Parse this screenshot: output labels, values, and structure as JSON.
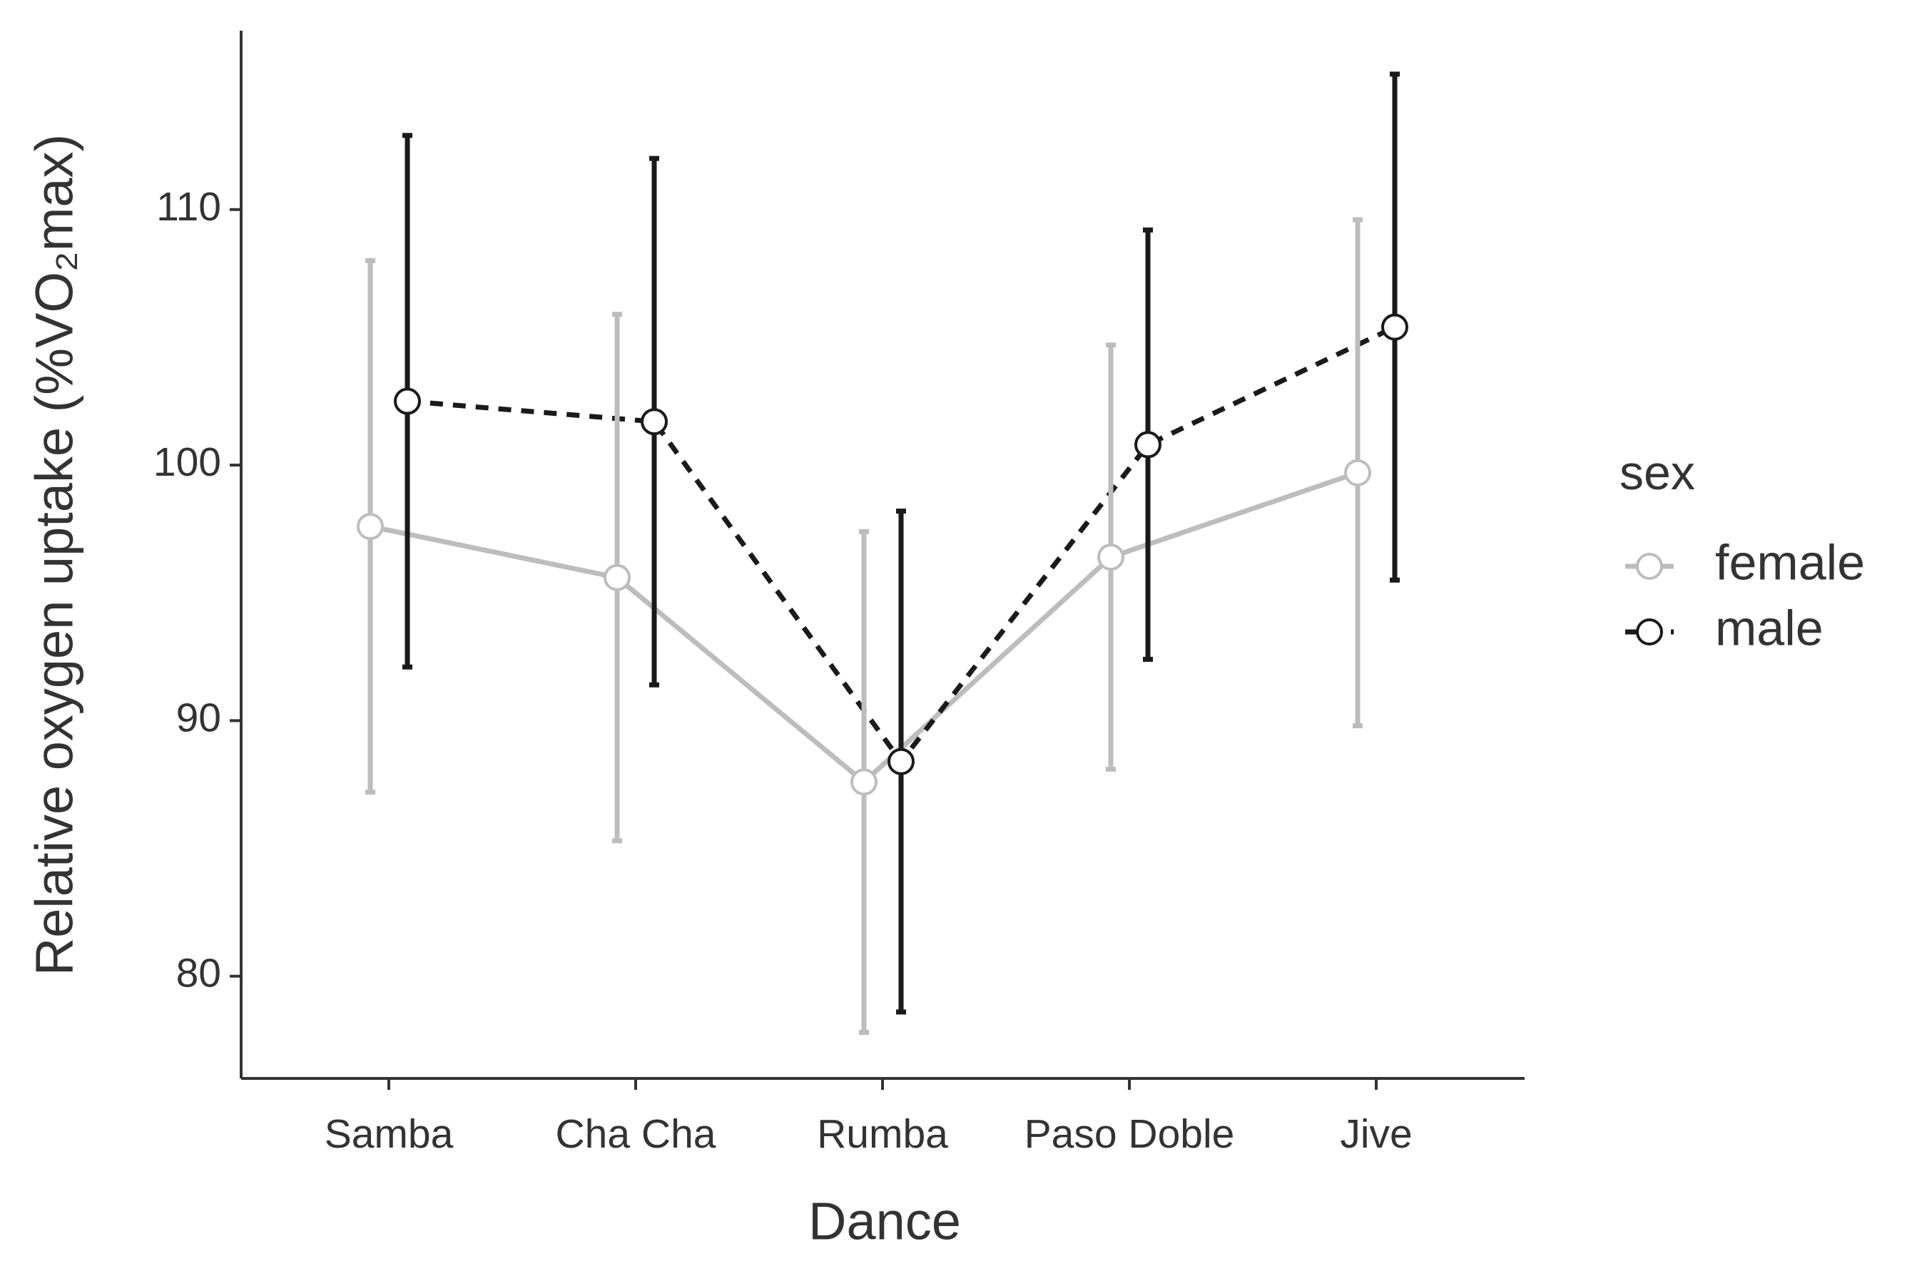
{
  "chart_data": {
    "type": "line",
    "xlabel": "Dance",
    "ylabel": "Relative oxygen uptake (%VO₂max)",
    "categories": [
      "Samba",
      "Cha Cha",
      "Rumba",
      "Paso Doble",
      "Jive"
    ],
    "series": [
      {
        "name": "female",
        "color": "#bdbdbd",
        "linestyle": "solid",
        "values": [
          97.6,
          95.6,
          87.6,
          96.4,
          99.7
        ],
        "errors": [
          10.4,
          10.3,
          9.8,
          8.3,
          9.9
        ]
      },
      {
        "name": "male",
        "color": "#1a1a1a",
        "linestyle": "dashed",
        "values": [
          102.5,
          101.7,
          88.4,
          100.8,
          105.4
        ],
        "errors": [
          10.4,
          10.3,
          9.8,
          8.4,
          9.9
        ]
      }
    ],
    "legend_title": "sex",
    "legend": "right",
    "ylim": [
      76,
      117
    ],
    "yticks": [
      80,
      90,
      100,
      110
    ],
    "grid": false
  }
}
